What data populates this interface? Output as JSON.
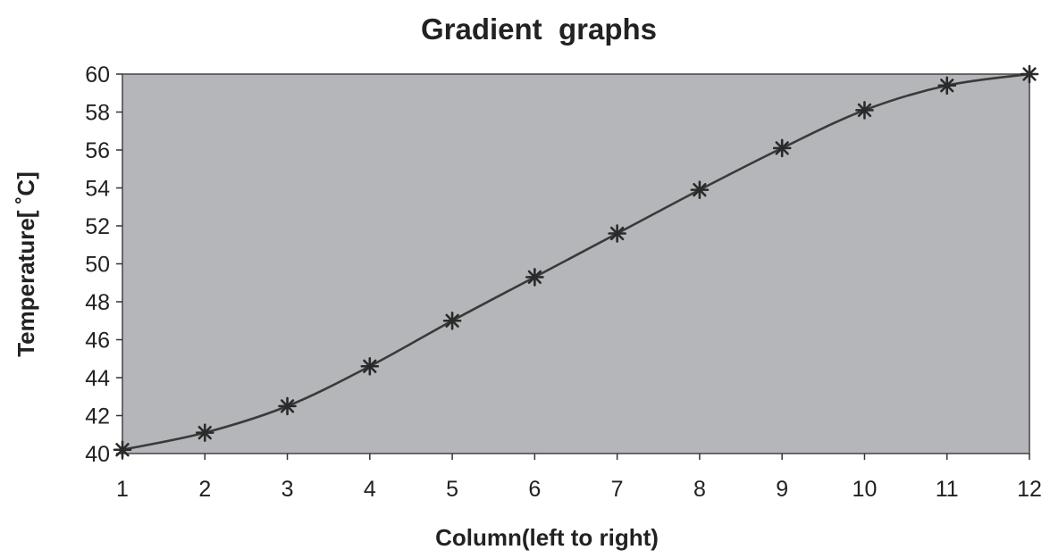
{
  "chart_data": {
    "type": "line",
    "title": "Gradient  graphs",
    "xlabel": "Column(left to right)",
    "ylabel": "Temperature[ ˚C]",
    "x": [
      1,
      2,
      3,
      4,
      5,
      6,
      7,
      8,
      9,
      10,
      11,
      12
    ],
    "series": [
      {
        "values": [
          40.2,
          41.1,
          42.5,
          44.6,
          47.0,
          49.3,
          51.6,
          53.9,
          56.1,
          58.1,
          59.4,
          60.0
        ]
      }
    ],
    "xlim": [
      1,
      12
    ],
    "ylim": [
      40,
      60
    ],
    "xticks": [
      "1",
      "2",
      "3",
      "4",
      "5",
      "6",
      "7",
      "8",
      "9",
      "10",
      "11",
      "12"
    ],
    "yticks": [
      "40",
      "42",
      "44",
      "46",
      "48",
      "50",
      "52",
      "54",
      "56",
      "58",
      "60"
    ],
    "marker": "asterisk",
    "grid": false,
    "colors": {
      "plot_background": "#b4b6b9",
      "line": "#3a3a3a",
      "marker": "#2a2a2a",
      "text": "#222222"
    }
  }
}
